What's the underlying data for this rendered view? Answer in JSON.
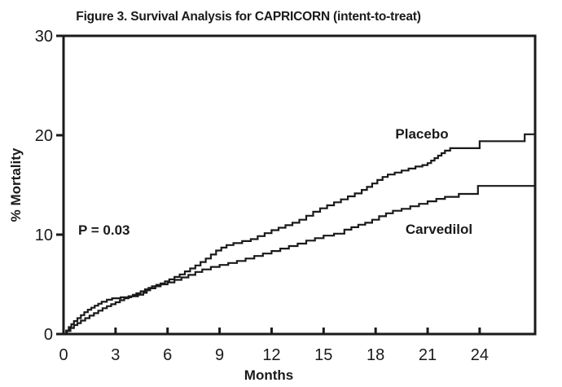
{
  "chart_data": {
    "type": "line",
    "variant": "kaplan-meier-step",
    "title": "Figure 3. Survival Analysis for CAPRICORN (intent-to-treat)",
    "xlabel": "Months",
    "ylabel": "% Mortality",
    "xlim": [
      0,
      27.2
    ],
    "ylim": [
      0,
      30
    ],
    "x_ticks": [
      0,
      3,
      6,
      9,
      12,
      15,
      18,
      21,
      24
    ],
    "y_ticks": [
      0,
      10,
      20,
      30
    ],
    "grid": false,
    "legend_position": "inline-curve-labels",
    "annotation": {
      "text": "P = 0.03"
    },
    "colors": {
      "line": "#1a1a1a",
      "background": "#ffffff"
    },
    "series": [
      {
        "name": "Placebo",
        "final_pct": 20.1,
        "points": [
          [
            0,
            0
          ],
          [
            0.2,
            0.3
          ],
          [
            0.4,
            0.6
          ],
          [
            0.6,
            0.9
          ],
          [
            0.8,
            1.1
          ],
          [
            1.0,
            1.35
          ],
          [
            1.25,
            1.6
          ],
          [
            1.5,
            1.85
          ],
          [
            1.75,
            2.1
          ],
          [
            2.0,
            2.35
          ],
          [
            2.25,
            2.6
          ],
          [
            2.5,
            2.8
          ],
          [
            2.75,
            3.0
          ],
          [
            3.0,
            3.2
          ],
          [
            3.25,
            3.4
          ],
          [
            3.5,
            3.6
          ],
          [
            3.75,
            3.8
          ],
          [
            4.0,
            3.95
          ],
          [
            4.2,
            4.1
          ],
          [
            4.45,
            4.3
          ],
          [
            4.7,
            4.5
          ],
          [
            4.9,
            4.65
          ],
          [
            5.1,
            4.8
          ],
          [
            5.35,
            4.95
          ],
          [
            5.6,
            5.1
          ],
          [
            5.85,
            5.3
          ],
          [
            6.1,
            5.5
          ],
          [
            6.4,
            5.75
          ],
          [
            6.7,
            6.0
          ],
          [
            7.0,
            6.3
          ],
          [
            7.3,
            6.6
          ],
          [
            7.6,
            6.9
          ],
          [
            7.9,
            7.25
          ],
          [
            8.2,
            7.6
          ],
          [
            8.5,
            8.0
          ],
          [
            8.8,
            8.4
          ],
          [
            9.1,
            8.7
          ],
          [
            9.4,
            8.95
          ],
          [
            9.8,
            9.15
          ],
          [
            10.3,
            9.35
          ],
          [
            10.8,
            9.55
          ],
          [
            11.2,
            9.85
          ],
          [
            11.6,
            10.15
          ],
          [
            12.0,
            10.45
          ],
          [
            12.4,
            10.7
          ],
          [
            12.8,
            10.95
          ],
          [
            13.2,
            11.2
          ],
          [
            13.6,
            11.5
          ],
          [
            14.0,
            11.9
          ],
          [
            14.4,
            12.3
          ],
          [
            14.8,
            12.65
          ],
          [
            15.2,
            12.95
          ],
          [
            15.6,
            13.25
          ],
          [
            16.0,
            13.55
          ],
          [
            16.4,
            13.85
          ],
          [
            16.8,
            14.15
          ],
          [
            17.2,
            14.5
          ],
          [
            17.5,
            14.8
          ],
          [
            17.8,
            15.15
          ],
          [
            18.1,
            15.5
          ],
          [
            18.4,
            15.8
          ],
          [
            18.7,
            16.05
          ],
          [
            19.1,
            16.25
          ],
          [
            19.5,
            16.45
          ],
          [
            19.9,
            16.65
          ],
          [
            20.3,
            16.85
          ],
          [
            20.7,
            17.0
          ],
          [
            21.0,
            17.2
          ],
          [
            21.2,
            17.45
          ],
          [
            21.4,
            17.7
          ],
          [
            21.6,
            17.95
          ],
          [
            21.8,
            18.2
          ],
          [
            22.0,
            18.45
          ],
          [
            22.3,
            18.7
          ],
          [
            24.0,
            19.4
          ],
          [
            26.6,
            20.1
          ]
        ]
      },
      {
        "name": "Carvedilol",
        "final_pct": 14.9,
        "points": [
          [
            0,
            0
          ],
          [
            0.15,
            0.35
          ],
          [
            0.3,
            0.7
          ],
          [
            0.45,
            1.0
          ],
          [
            0.6,
            1.3
          ],
          [
            0.8,
            1.6
          ],
          [
            1.0,
            1.9
          ],
          [
            1.2,
            2.2
          ],
          [
            1.4,
            2.45
          ],
          [
            1.6,
            2.65
          ],
          [
            1.8,
            2.85
          ],
          [
            2.0,
            3.05
          ],
          [
            2.2,
            3.25
          ],
          [
            2.5,
            3.45
          ],
          [
            2.8,
            3.6
          ],
          [
            3.3,
            3.7
          ],
          [
            3.9,
            3.8
          ],
          [
            4.3,
            3.95
          ],
          [
            4.6,
            4.15
          ],
          [
            4.8,
            4.4
          ],
          [
            5.0,
            4.6
          ],
          [
            5.3,
            4.8
          ],
          [
            5.6,
            5.0
          ],
          [
            6.0,
            5.2
          ],
          [
            6.4,
            5.45
          ],
          [
            6.8,
            5.7
          ],
          [
            7.2,
            5.95
          ],
          [
            7.6,
            6.25
          ],
          [
            8.0,
            6.5
          ],
          [
            8.5,
            6.75
          ],
          [
            9.0,
            6.95
          ],
          [
            9.5,
            7.15
          ],
          [
            10.0,
            7.35
          ],
          [
            10.5,
            7.6
          ],
          [
            11.0,
            7.85
          ],
          [
            11.5,
            8.1
          ],
          [
            12.0,
            8.35
          ],
          [
            12.5,
            8.6
          ],
          [
            13.0,
            8.85
          ],
          [
            13.5,
            9.1
          ],
          [
            14.0,
            9.4
          ],
          [
            14.5,
            9.65
          ],
          [
            15.0,
            9.9
          ],
          [
            15.6,
            10.1
          ],
          [
            16.2,
            10.5
          ],
          [
            16.6,
            10.75
          ],
          [
            17.0,
            11.0
          ],
          [
            17.4,
            11.2
          ],
          [
            17.8,
            11.5
          ],
          [
            18.2,
            11.85
          ],
          [
            18.6,
            12.15
          ],
          [
            19.0,
            12.4
          ],
          [
            19.5,
            12.6
          ],
          [
            20.0,
            12.85
          ],
          [
            20.5,
            13.1
          ],
          [
            21.0,
            13.35
          ],
          [
            21.5,
            13.6
          ],
          [
            22.0,
            13.8
          ],
          [
            22.8,
            14.1
          ],
          [
            23.9,
            14.9
          ]
        ]
      }
    ]
  }
}
